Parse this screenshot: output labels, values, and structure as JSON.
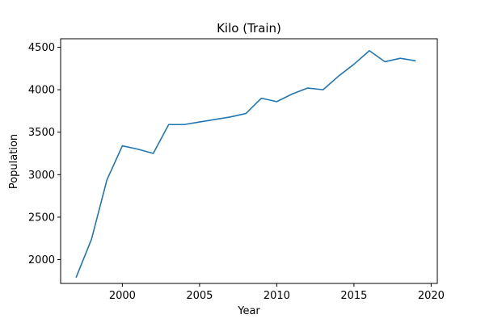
{
  "chart_data": {
    "type": "line",
    "title": "Kilo (Train)",
    "xlabel": "Year",
    "ylabel": "Population",
    "xlim": [
      1996,
      2020.4
    ],
    "ylim": [
      1720,
      4600
    ],
    "xticks": [
      2000,
      2005,
      2010,
      2015,
      2020
    ],
    "yticks": [
      2000,
      2500,
      3000,
      3500,
      4000,
      4500
    ],
    "grid": false,
    "series": [
      {
        "name": "Kilo (Train)",
        "color": "#1f77b4",
        "x": [
          1997,
          1998,
          1999,
          2000,
          2001,
          2002,
          2003,
          2004,
          2005,
          2006,
          2007,
          2008,
          2009,
          2010,
          2011,
          2012,
          2013,
          2014,
          2015,
          2016,
          2017,
          2018,
          2019
        ],
        "y": [
          1790,
          2240,
          2940,
          3340,
          3300,
          3250,
          3590,
          3590,
          3620,
          3650,
          3680,
          3720,
          3900,
          3860,
          3950,
          4020,
          4000,
          4160,
          4300,
          4460,
          4330,
          4370,
          4340
        ]
      }
    ]
  }
}
